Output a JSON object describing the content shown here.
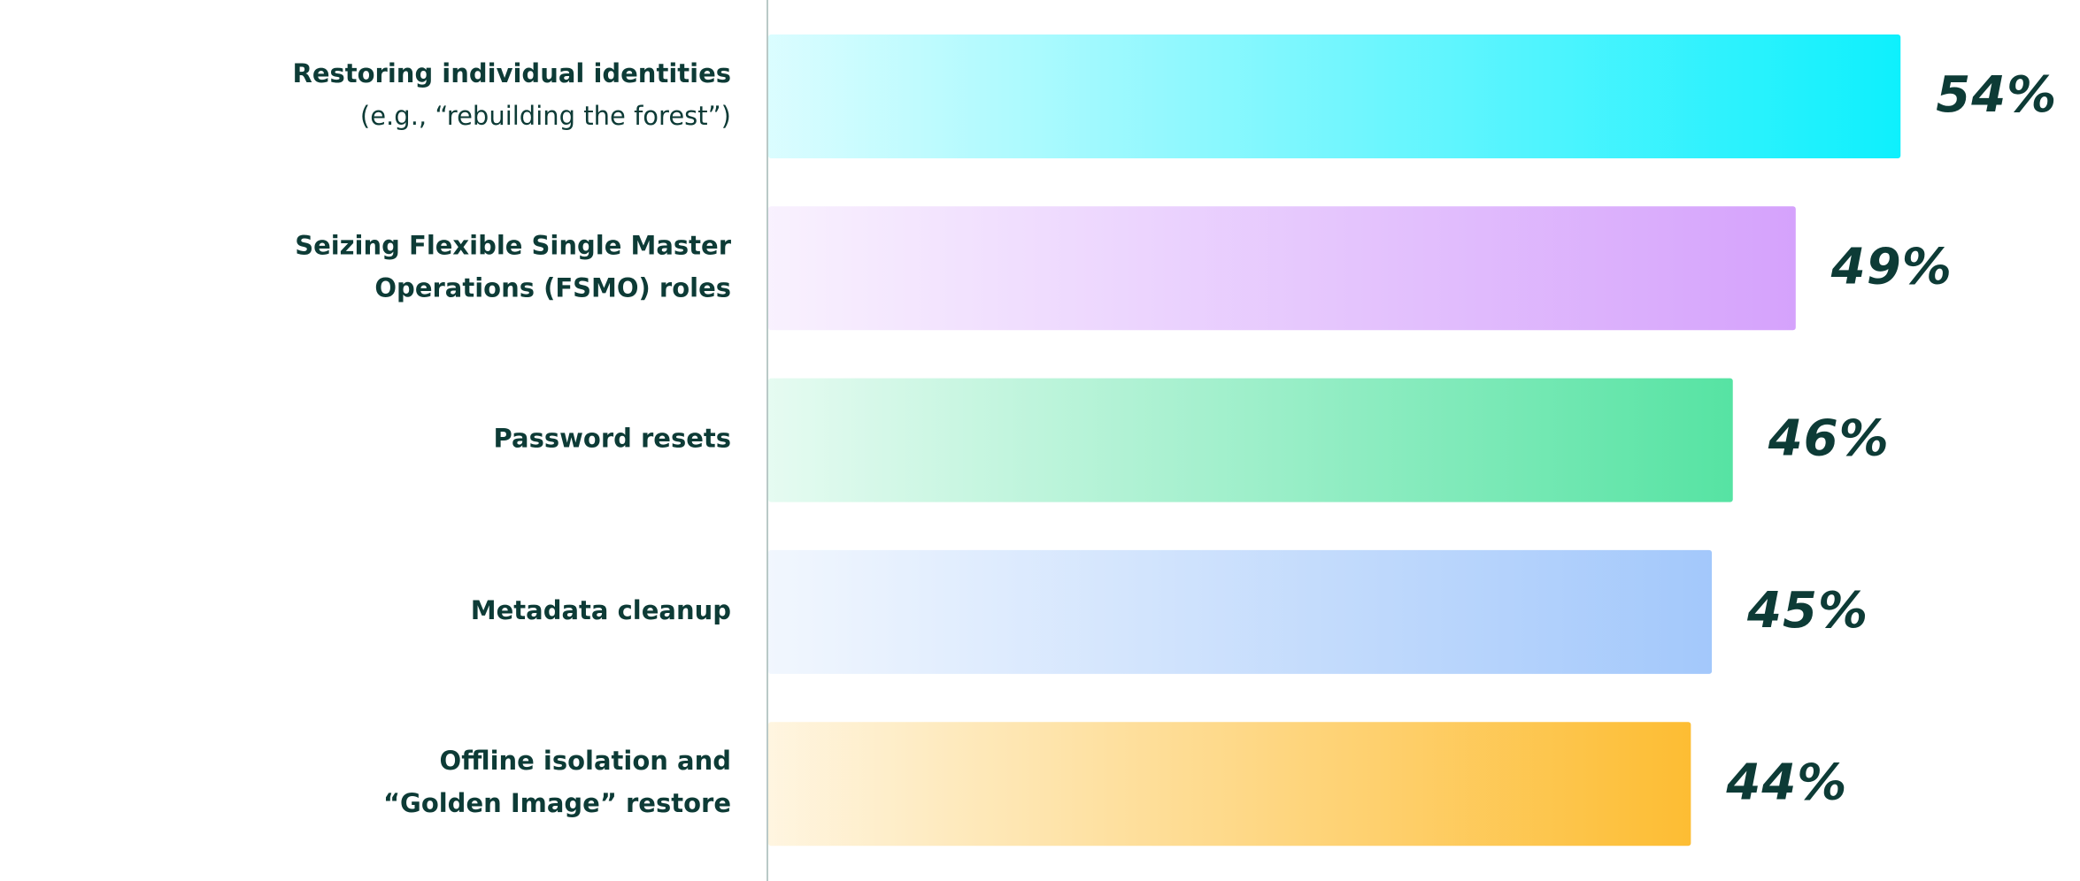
{
  "chart_data": {
    "type": "barh",
    "categories": [
      [
        "Restoring individual identities",
        "(e.g., “rebuilding the forest”)"
      ],
      [
        "Seizing Flexible Single Master",
        "Operations (FSMO) roles"
      ],
      [
        "Password resets"
      ],
      [
        "Metadata cleanup"
      ],
      [
        "Offline isolation and",
        "“Golden Image” restore"
      ]
    ],
    "values": [
      54,
      49,
      46,
      45,
      44
    ],
    "value_labels": [
      "54%",
      "49%",
      "46%",
      "45%",
      "44%"
    ],
    "colors": [
      "#0ef0fd",
      "#d5a2fc",
      "#56e3a3",
      "#a3c8fb",
      "#fdbd33"
    ]
  }
}
